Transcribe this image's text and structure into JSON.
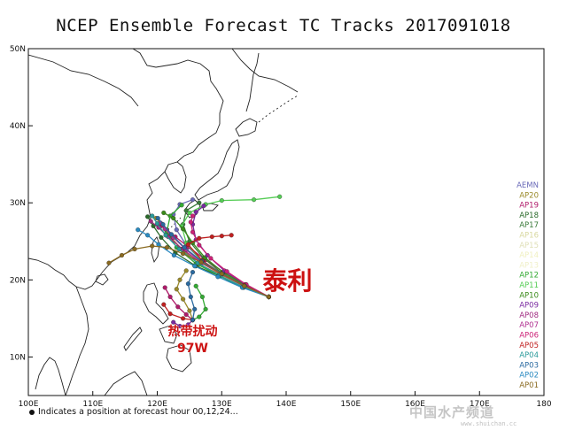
{
  "title": "NCEP Ensemble Forecast TC Tracks 2017091018",
  "footnote": "Indicates a position at forecast hour 00,12,24...",
  "watermark": {
    "text": "中国水产频道",
    "url": "www.shuichan.cc"
  },
  "axes": {
    "lon": {
      "min": 100,
      "max": 180,
      "ticks": [
        100,
        110,
        120,
        130,
        140,
        150,
        160,
        170,
        180
      ],
      "tick_labels": [
        "100E",
        "110E",
        "120E",
        "130E",
        "140E",
        "150E",
        "160E",
        "170E",
        "180"
      ]
    },
    "lat": {
      "min": 5,
      "max": 50,
      "ticks": [
        10,
        20,
        30,
        40,
        50
      ],
      "tick_labels": [
        "10N",
        "20N",
        "30N",
        "40N",
        "50N"
      ]
    }
  },
  "annotations": [
    {
      "text": "泰利",
      "lon": 140.2,
      "lat": 18.8,
      "color": "#cc1111",
      "size": "large"
    },
    {
      "text": "热带扰动",
      "lon": 125.5,
      "lat": 12.8,
      "color": "#cc1111",
      "size": "small"
    },
    {
      "text": "97W",
      "lon": 125.5,
      "lat": 10.6,
      "color": "#cc1111",
      "size": "small"
    }
  ],
  "legend": {
    "placement": "right",
    "entries": [
      {
        "label": "AEMN",
        "color": "#6a6ab8"
      },
      {
        "label": "AP20",
        "color": "#9a8a2a"
      },
      {
        "label": "AP19",
        "color": "#b01a6a"
      },
      {
        "label": "AP18",
        "color": "#2a6a2a"
      },
      {
        "label": "AP17",
        "color": "#3a7a3a"
      },
      {
        "label": "AP16",
        "color": "#d8d8a0"
      },
      {
        "label": "AP15",
        "color": "#e0e0b8"
      },
      {
        "label": "AP14",
        "color": "#f0f0c0"
      },
      {
        "label": "AP13",
        "color": "#f0f0c8"
      },
      {
        "label": "AP12",
        "color": "#33aa33"
      },
      {
        "label": "AP11",
        "color": "#55cc55"
      },
      {
        "label": "AP10",
        "color": "#3a8a1a"
      },
      {
        "label": "AP09",
        "color": "#7a2aa0"
      },
      {
        "label": "AP08",
        "color": "#a02a80"
      },
      {
        "label": "AP07",
        "color": "#b03090"
      },
      {
        "label": "AP06",
        "color": "#cc2277"
      },
      {
        "label": "AP05",
        "color": "#c02020"
      },
      {
        "label": "AP04",
        "color": "#2a9a9a"
      },
      {
        "label": "AP03",
        "color": "#2a6aa0"
      },
      {
        "label": "AP02",
        "color": "#2a8ac0"
      },
      {
        "label": "AP01",
        "color": "#8a6a20"
      }
    ]
  },
  "chart_data": {
    "type": "line",
    "title": "NCEP Ensemble Forecast TC Tracks 2017091018",
    "xlim": [
      100,
      180
    ],
    "ylim": [
      5,
      50
    ],
    "series": [
      {
        "name": "AEMN",
        "color": "#6a6ab8",
        "x": [
          137.3,
          133.5,
          130.0,
          127.0,
          124.5,
          123.0,
          122.5,
          123.5,
          125.5
        ],
        "y": [
          17.8,
          19.3,
          20.8,
          22.4,
          24.5,
          26.5,
          28.5,
          29.8,
          30.4
        ]
      },
      {
        "name": "AP20",
        "color": "#9a8a2a",
        "x": [
          137.3,
          133.5,
          129.8,
          126.5,
          123.8,
          121.8,
          120.6,
          119.8
        ],
        "y": [
          17.8,
          19.2,
          20.7,
          22.0,
          24.0,
          25.8,
          27.3,
          28.0
        ]
      },
      {
        "name": "AP19",
        "color": "#b01a6a",
        "x": [
          137.3,
          133.8,
          130.5,
          127.5,
          124.8,
          122.8,
          121.5,
          120.6
        ],
        "y": [
          17.8,
          19.4,
          20.9,
          22.6,
          24.3,
          25.6,
          26.5,
          27.0
        ]
      },
      {
        "name": "AP18",
        "color": "#2a6a2a",
        "x": [
          137.3,
          133.4,
          129.7,
          126.0,
          122.8,
          120.6,
          119.4,
          118.5
        ],
        "y": [
          17.8,
          19.0,
          20.5,
          21.8,
          23.5,
          25.5,
          27.0,
          28.2
        ]
      },
      {
        "name": "AP17",
        "color": "#3a7a3a",
        "x": [
          137.3,
          133.6,
          130.0,
          127.2,
          125.0,
          124.0,
          124.5,
          126.5
        ],
        "y": [
          17.8,
          19.3,
          20.9,
          22.8,
          25.0,
          27.2,
          29.0,
          30.0
        ]
      },
      {
        "name": "AP12",
        "color": "#33aa33",
        "x": [
          137.3,
          133.2,
          129.5,
          126.0,
          123.0,
          121.5,
          122.0,
          123.8
        ],
        "y": [
          17.8,
          19.1,
          20.6,
          22.1,
          24.2,
          26.3,
          28.3,
          29.7
        ]
      },
      {
        "name": "AP11",
        "color": "#55cc55",
        "x": [
          137.3,
          133.5,
          130.0,
          126.8,
          124.5,
          123.8,
          125.0,
          127.5,
          130.0,
          135.0,
          139.0
        ],
        "y": [
          17.8,
          19.3,
          20.8,
          22.5,
          24.8,
          27.0,
          28.7,
          29.8,
          30.3,
          30.4,
          30.8
        ]
      },
      {
        "name": "AP10",
        "color": "#3a8a1a",
        "x": [
          137.3,
          133.6,
          130.2,
          127.4,
          125.5,
          124.0,
          122.5,
          121.0
        ],
        "y": [
          17.8,
          19.4,
          21.0,
          22.9,
          24.8,
          26.6,
          28.0,
          28.7
        ]
      },
      {
        "name": "AP09",
        "color": "#7a2aa0",
        "x": [
          137.3,
          133.7,
          130.4,
          127.8,
          126.0,
          125.5,
          126.0,
          127.2
        ],
        "y": [
          17.8,
          19.4,
          21.2,
          23.2,
          25.2,
          27.2,
          28.8,
          29.6
        ]
      },
      {
        "name": "AP08",
        "color": "#a02a80",
        "x": [
          137.3,
          133.4,
          129.9,
          126.6,
          123.9,
          121.7,
          120.2,
          119.0
        ],
        "y": [
          17.8,
          19.2,
          20.8,
          22.3,
          24.0,
          25.6,
          26.8,
          27.6
        ]
      },
      {
        "name": "AP07",
        "color": "#b03090",
        "x": [
          137.3,
          133.5,
          130.1,
          127.0,
          124.5,
          122.5,
          121.2,
          120.5
        ],
        "y": [
          17.8,
          19.2,
          20.7,
          22.2,
          23.9,
          25.5,
          26.6,
          27.4
        ]
      },
      {
        "name": "AP06",
        "color": "#cc2277",
        "x": [
          137.3,
          133.8,
          130.8,
          128.3,
          126.5,
          125.5,
          125.2,
          125.5
        ],
        "y": [
          17.8,
          19.4,
          21.1,
          22.8,
          24.5,
          26.2,
          27.5,
          28.3
        ]
      },
      {
        "name": "AP05",
        "color": "#c02020",
        "x": [
          137.3,
          133.5,
          130.0,
          127.0,
          124.8,
          126.5,
          128.5,
          130.0,
          131.5
        ],
        "y": [
          17.8,
          19.3,
          20.8,
          22.5,
          24.6,
          25.4,
          25.6,
          25.7,
          25.8
        ]
      },
      {
        "name": "AP04",
        "color": "#2a9a9a",
        "x": [
          137.3,
          133.3,
          129.6,
          126.3,
          123.4,
          121.3,
          120.0,
          119.2
        ],
        "y": [
          17.8,
          19.1,
          20.6,
          22.2,
          24.0,
          25.8,
          27.3,
          28.3
        ]
      },
      {
        "name": "AP03",
        "color": "#2a6aa0",
        "x": [
          137.3,
          133.6,
          130.1,
          126.9,
          124.2,
          122.2,
          120.9,
          120.1
        ],
        "y": [
          17.8,
          19.2,
          20.8,
          22.4,
          24.2,
          25.9,
          27.2,
          28.0
        ]
      },
      {
        "name": "AP02",
        "color": "#2a8ac0",
        "x": [
          137.3,
          133.2,
          129.4,
          125.8,
          122.6,
          120.2,
          118.5,
          117.0
        ],
        "y": [
          17.8,
          19.0,
          20.4,
          21.8,
          23.2,
          24.6,
          25.8,
          26.5
        ]
      },
      {
        "name": "AP01",
        "color": "#8a6a20",
        "x": [
          137.3,
          133.5,
          130.0,
          126.8,
          124.0,
          121.5,
          119.2,
          116.5,
          114.5,
          112.5
        ],
        "y": [
          17.8,
          19.2,
          20.8,
          22.3,
          23.4,
          24.2,
          24.4,
          24.0,
          23.2,
          22.2
        ]
      },
      {
        "name": "AP20",
        "color": "#9a8a2a",
        "x": [
          125.5,
          125.0,
          124.0,
          123.0,
          123.5,
          124.5
        ],
        "y": [
          14.8,
          16.0,
          17.5,
          18.8,
          20.0,
          21.2
        ]
      },
      {
        "name": "AP19",
        "color": "#b01a6a",
        "x": [
          125.5,
          124.5,
          123.2,
          122.0,
          121.2
        ],
        "y": [
          14.8,
          15.5,
          16.5,
          17.8,
          19.0
        ]
      },
      {
        "name": "AP12",
        "color": "#33aa33",
        "x": [
          125.5,
          126.5,
          127.5,
          127.0,
          126.0
        ],
        "y": [
          14.8,
          15.2,
          16.2,
          17.8,
          19.2
        ]
      },
      {
        "name": "AP09",
        "color": "#7a2aa0",
        "x": [
          125.5,
          124.8,
          123.5,
          122.5
        ],
        "y": [
          14.8,
          14.2,
          14.0,
          14.5
        ]
      },
      {
        "name": "AP05",
        "color": "#c02020",
        "x": [
          125.5,
          124.0,
          122.0,
          121.0
        ],
        "y": [
          14.8,
          15.0,
          15.6,
          16.8
        ]
      },
      {
        "name": "AP03",
        "color": "#2a6aa0",
        "x": [
          125.5,
          125.8,
          125.2,
          124.8,
          125.5
        ],
        "y": [
          14.8,
          16.2,
          17.8,
          19.5,
          21.0
        ]
      }
    ]
  }
}
